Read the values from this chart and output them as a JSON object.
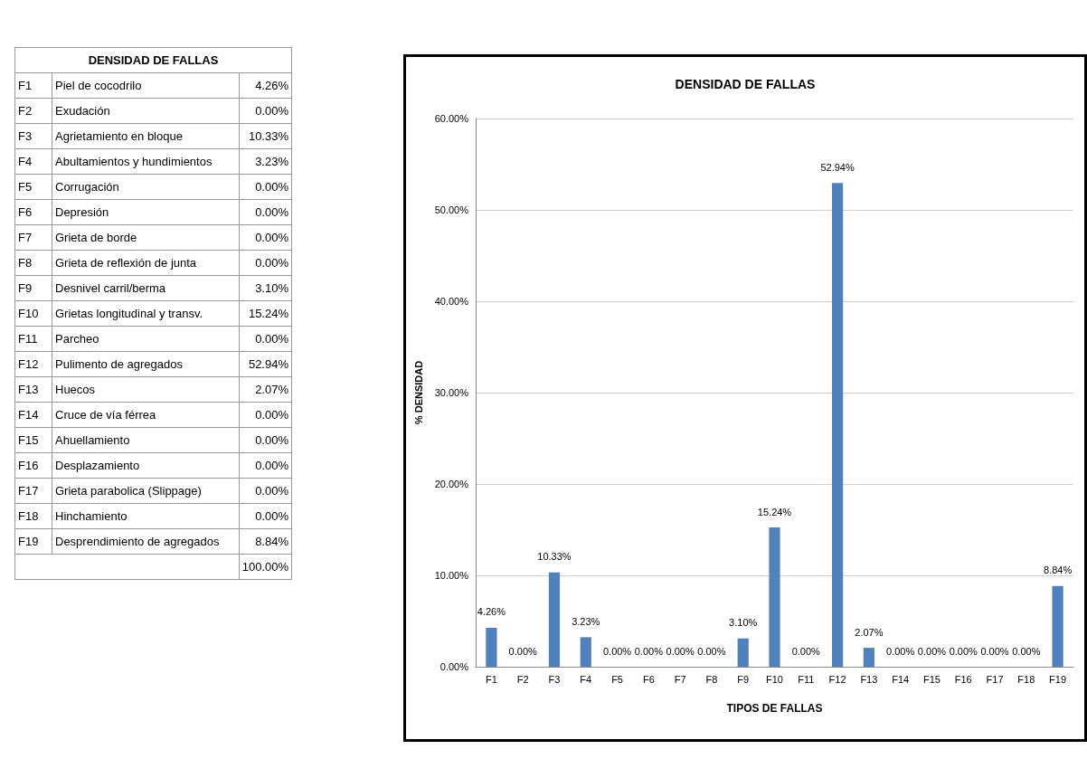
{
  "chart_data": [
    {
      "type": "other",
      "title": "DENSIDAD DE FALLAS",
      "categories": [
        "F1",
        "F2",
        "F3",
        "F4",
        "F5",
        "F6",
        "F7",
        "F8",
        "F9",
        "F10",
        "F11",
        "F12",
        "F13",
        "F14",
        "F15",
        "F16",
        "F17",
        "F18",
        "F19"
      ],
      "annotations": [
        "Piel de cocodrilo",
        "Exudación",
        "Agrietamiento en bloque",
        "Abultamientos y hundimientos",
        "Corrugación",
        "Depresión",
        "Grieta de borde",
        "Grieta de reflexión de junta",
        "Desnivel carril/berma",
        "Grietas longitudinal y transv.",
        "Parcheo",
        "Pulimento de agregados",
        "Huecos",
        "Cruce de vía férrea",
        "Ahuellamiento",
        "Desplazamiento",
        "Grieta parabolica (Slippage)",
        "Hinchamiento",
        "Desprendimiento de agregados"
      ],
      "values": [
        4.26,
        0,
        10.33,
        3.23,
        0,
        0,
        0,
        0,
        3.1,
        15.24,
        0,
        52.94,
        2.07,
        0,
        0,
        0,
        0,
        0,
        8.84
      ],
      "value_labels": [
        "4.26%",
        "0.00%",
        "10.33%",
        "3.23%",
        "0.00%",
        "0.00%",
        "0.00%",
        "0.00%",
        "3.10%",
        "15.24%",
        "0.00%",
        "52.94%",
        "2.07%",
        "0.00%",
        "0.00%",
        "0.00%",
        "0.00%",
        "0.00%",
        "8.84%"
      ],
      "totals": [
        "100.00%"
      ]
    },
    {
      "type": "bar",
      "title": "DENSIDAD DE FALLAS",
      "xlabel": "TIPOS DE FALLAS",
      "ylabel": "% DENSIDAD",
      "categories": [
        "F1",
        "F2",
        "F3",
        "F4",
        "F5",
        "F6",
        "F7",
        "F8",
        "F9",
        "F10",
        "F11",
        "F12",
        "F13",
        "F14",
        "F15",
        "F16",
        "F17",
        "F18",
        "F19"
      ],
      "values": [
        4.26,
        0,
        10.33,
        3.23,
        0,
        0,
        0,
        0,
        3.1,
        15.24,
        0,
        52.94,
        2.07,
        0,
        0,
        0,
        0,
        0,
        8.84
      ],
      "value_labels": [
        "4.26%",
        "0.00%",
        "10.33%",
        "3.23%",
        "0.00%",
        "0.00%",
        "0.00%",
        "0.00%",
        "3.10%",
        "15.24%",
        "0.00%",
        "52.94%",
        "2.07%",
        "0.00%",
        "0.00%",
        "0.00%",
        "0.00%",
        "0.00%",
        "8.84%"
      ],
      "color": "#4f81bd",
      "ylim": [
        0,
        60
      ],
      "yticks": [
        {
          "value": 0,
          "label": "0.00%"
        },
        {
          "value": 10,
          "label": "10.00%"
        },
        {
          "value": 20,
          "label": "20.00%"
        },
        {
          "value": 30,
          "label": "30.00%"
        },
        {
          "value": 40,
          "label": "40.00%"
        },
        {
          "value": 50,
          "label": "50.00%"
        },
        {
          "value": 60,
          "label": "60.00%"
        }
      ],
      "grid": "y"
    }
  ]
}
